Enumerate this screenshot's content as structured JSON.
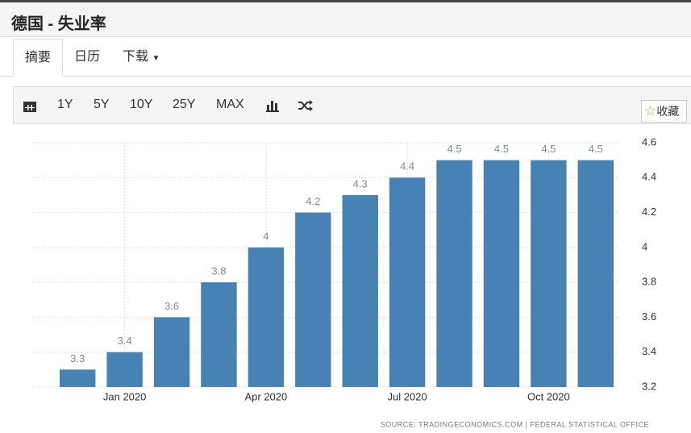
{
  "header": {
    "title": "德国 - 失业率"
  },
  "tabs": [
    "摘要",
    "日历",
    "下载"
  ],
  "toolbar": {
    "ranges": [
      "1Y",
      "5Y",
      "10Y",
      "25Y",
      "MAX"
    ],
    "favorite": "收藏"
  },
  "chart_data": {
    "type": "bar",
    "categories": [
      null,
      "Jan 2020",
      null,
      null,
      "Apr 2020",
      null,
      null,
      "Jul 2020",
      null,
      null,
      "Oct 2020",
      null
    ],
    "values": [
      3.3,
      3.4,
      3.6,
      3.8,
      4,
      4.2,
      4.3,
      4.4,
      4.5,
      4.5,
      4.5,
      4.5
    ],
    "color": "#4682b4",
    "ylim": [
      3.2,
      4.6
    ],
    "yticks": [
      3.2,
      3.4,
      3.6,
      3.8,
      4,
      4.2,
      4.4,
      4.6
    ],
    "grid": true,
    "source": "SOURCE: TRADINGECONOMICS.COM  |  FEDERAL STATISTICAL OFFICE"
  }
}
